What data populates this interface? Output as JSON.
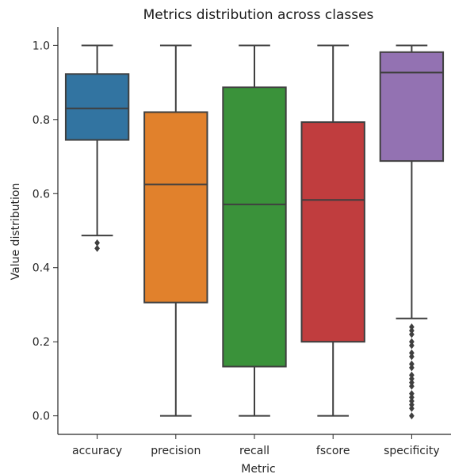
{
  "chart_data": {
    "type": "box",
    "title": "Metrics distribution across classes",
    "xlabel": "Metric",
    "ylabel": "Value distribution",
    "ylim": [
      -0.05,
      1.05
    ],
    "yticks": [
      "0.0",
      "0.2",
      "0.4",
      "0.6",
      "0.8",
      "1.0"
    ],
    "grid": false,
    "categories": [
      "accuracy",
      "precision",
      "recall",
      "fscore",
      "specificity"
    ],
    "boxes": [
      {
        "name": "accuracy",
        "color": "#3274a1",
        "whisker_low": 0.487,
        "q1": 0.745,
        "median": 0.83,
        "q3": 0.923,
        "whisker_high": 1.0,
        "outliers": [
          0.467,
          0.452
        ]
      },
      {
        "name": "precision",
        "color": "#e1812c",
        "whisker_low": 0.0,
        "q1": 0.306,
        "median": 0.625,
        "q3": 0.82,
        "whisker_high": 1.0,
        "outliers": []
      },
      {
        "name": "recall",
        "color": "#3a923a",
        "whisker_low": 0.0,
        "q1": 0.133,
        "median": 0.571,
        "q3": 0.887,
        "whisker_high": 1.0,
        "outliers": []
      },
      {
        "name": "fscore",
        "color": "#c03d3e",
        "whisker_low": 0.0,
        "q1": 0.2,
        "median": 0.583,
        "q3": 0.793,
        "whisker_high": 1.0,
        "outliers": []
      },
      {
        "name": "specificity",
        "color": "#9372b2",
        "whisker_low": 0.263,
        "q1": 0.688,
        "median": 0.927,
        "q3": 0.982,
        "whisker_high": 1.0,
        "outliers": [
          0.24,
          0.23,
          0.22,
          0.2,
          0.19,
          0.17,
          0.16,
          0.14,
          0.13,
          0.11,
          0.1,
          0.09,
          0.08,
          0.06,
          0.05,
          0.04,
          0.03,
          0.02,
          0.0
        ]
      }
    ]
  }
}
